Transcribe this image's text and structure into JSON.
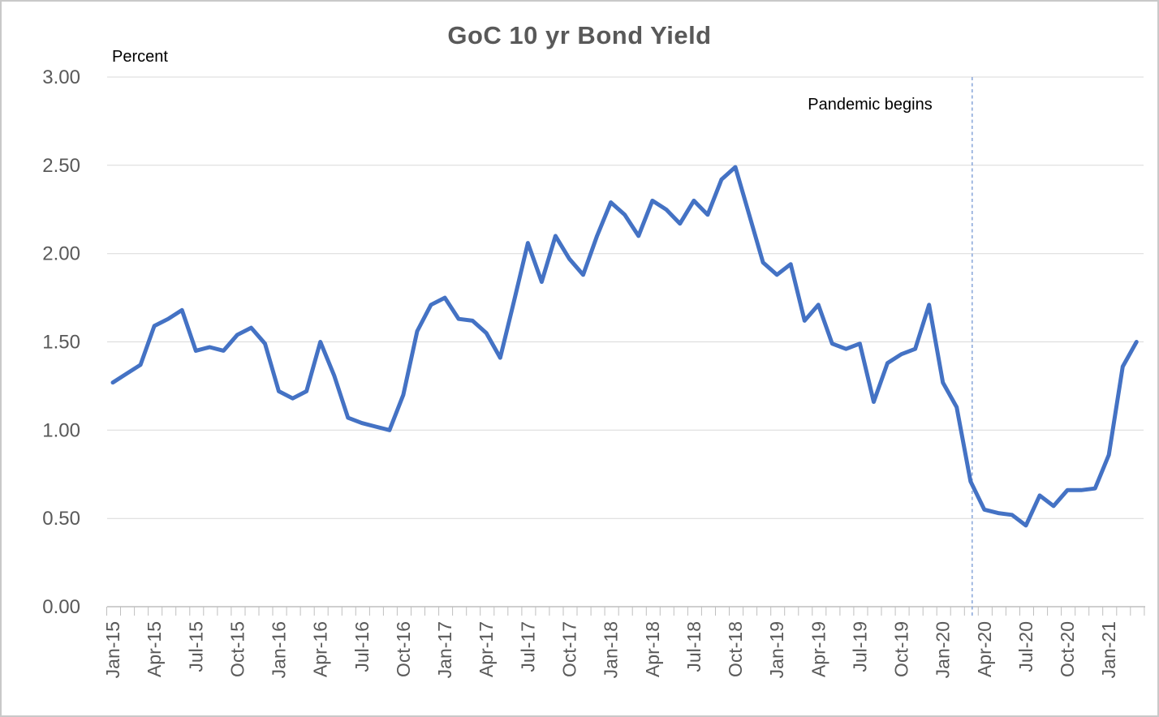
{
  "chart": {
    "title": "GoC 10 yr Bond Yield",
    "y_unit_label": "Percent",
    "annotation_label": "Pandemic begins"
  },
  "colors": {
    "line": "#4472C4",
    "gridline": "#D9D9D9",
    "axis": "#BFBFBF",
    "axis_text": "#595959",
    "title_text": "#595959",
    "annotation_line": "#8EAADB",
    "annotation_text": "#000000",
    "background": "#FFFFFF",
    "border": "#C9C9C9"
  },
  "chart_data": {
    "type": "line",
    "title": "GoC 10 yr Bond Yield",
    "xlabel": "",
    "ylabel": "Percent",
    "ylim": [
      0.0,
      3.0
    ],
    "ytick_step": 0.5,
    "ytick_labels": [
      "0.00",
      "0.50",
      "1.00",
      "1.50",
      "2.00",
      "2.50",
      "3.00"
    ],
    "grid": "horizontal",
    "legend": "none",
    "x_tick_interval": 3,
    "x_tick_labels_shown": [
      "Jan-15",
      "Apr-15",
      "Jul-15",
      "Oct-15",
      "Jan-16",
      "Apr-16",
      "Jul-16",
      "Oct-16",
      "Jan-17",
      "Apr-17",
      "Jul-17",
      "Oct-17",
      "Jan-18",
      "Apr-18",
      "Jul-18",
      "Oct-18",
      "Jan-19",
      "Apr-19",
      "Jul-19",
      "Oct-19",
      "Jan-20",
      "Apr-20",
      "Jul-20",
      "Oct-20",
      "Jan-21"
    ],
    "x": [
      "Jan-15",
      "Feb-15",
      "Mar-15",
      "Apr-15",
      "May-15",
      "Jun-15",
      "Jul-15",
      "Aug-15",
      "Sep-15",
      "Oct-15",
      "Nov-15",
      "Dec-15",
      "Jan-16",
      "Feb-16",
      "Mar-16",
      "Apr-16",
      "May-16",
      "Jun-16",
      "Jul-16",
      "Aug-16",
      "Sep-16",
      "Oct-16",
      "Nov-16",
      "Dec-16",
      "Jan-17",
      "Feb-17",
      "Mar-17",
      "Apr-17",
      "May-17",
      "Jun-17",
      "Jul-17",
      "Aug-17",
      "Sep-17",
      "Oct-17",
      "Nov-17",
      "Dec-17",
      "Jan-18",
      "Feb-18",
      "Mar-18",
      "Apr-18",
      "May-18",
      "Jun-18",
      "Jul-18",
      "Aug-18",
      "Sep-18",
      "Oct-18",
      "Nov-18",
      "Dec-18",
      "Jan-19",
      "Feb-19",
      "Mar-19",
      "Apr-19",
      "May-19",
      "Jun-19",
      "Jul-19",
      "Aug-19",
      "Sep-19",
      "Oct-19",
      "Nov-19",
      "Dec-19",
      "Jan-20",
      "Feb-20",
      "Mar-20",
      "Apr-20",
      "May-20",
      "Jun-20",
      "Jul-20",
      "Aug-20",
      "Sep-20",
      "Oct-20",
      "Nov-20",
      "Dec-20",
      "Jan-21",
      "Feb-21",
      "Mar-21"
    ],
    "series": [
      {
        "name": "GoC 10 yr Bond Yield",
        "color": "#4472C4",
        "values": [
          1.27,
          1.32,
          1.37,
          1.59,
          1.63,
          1.68,
          1.45,
          1.47,
          1.45,
          1.54,
          1.58,
          1.49,
          1.22,
          1.18,
          1.22,
          1.5,
          1.31,
          1.07,
          1.04,
          1.02,
          1.0,
          1.2,
          1.56,
          1.71,
          1.75,
          1.63,
          1.62,
          1.55,
          1.41,
          1.73,
          2.06,
          1.84,
          2.1,
          1.97,
          1.88,
          2.1,
          2.29,
          2.22,
          2.1,
          2.3,
          2.25,
          2.17,
          2.3,
          2.22,
          2.42,
          2.49,
          2.22,
          1.95,
          1.88,
          1.94,
          1.62,
          1.71,
          1.49,
          1.46,
          1.49,
          1.16,
          1.38,
          1.43,
          1.46,
          1.71,
          1.27,
          1.13,
          0.71,
          0.55,
          0.53,
          0.52,
          0.46,
          0.63,
          0.57,
          0.66,
          0.66,
          0.67,
          0.86,
          1.36,
          1.5
        ]
      }
    ],
    "annotations": [
      {
        "type": "vline",
        "x": "Mar-20",
        "label": "Pandemic begins",
        "style": "dashed",
        "color": "#8EAADB"
      }
    ]
  }
}
